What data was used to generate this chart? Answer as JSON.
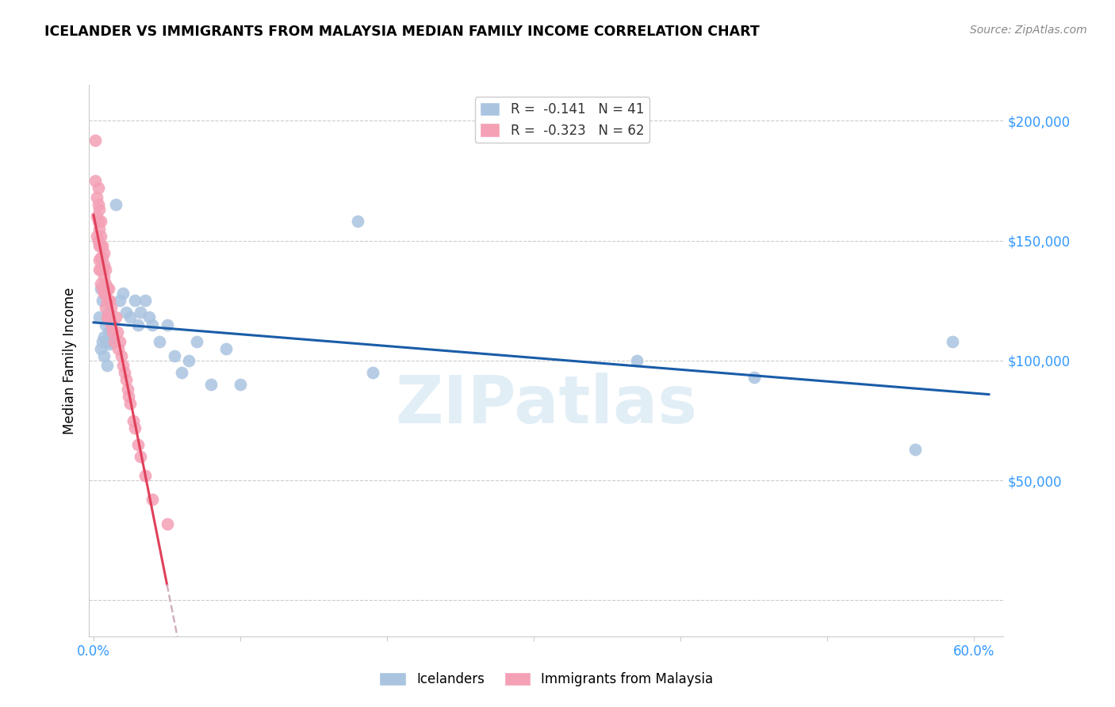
{
  "title": "ICELANDER VS IMMIGRANTS FROM MALAYSIA MEDIAN FAMILY INCOME CORRELATION CHART",
  "source": "Source: ZipAtlas.com",
  "ylabel": "Median Family Income",
  "xlim": [
    -0.003,
    0.62
  ],
  "ylim": [
    -15000,
    215000
  ],
  "ytick_vals": [
    0,
    50000,
    100000,
    150000,
    200000
  ],
  "ytick_labels": [
    "",
    "$50,000",
    "$100,000",
    "$150,000",
    "$200,000"
  ],
  "xtick_vals": [
    0.0,
    0.1,
    0.2,
    0.3,
    0.4,
    0.5,
    0.6
  ],
  "xtick_labels": [
    "0.0%",
    "",
    "",
    "",
    "",
    "",
    "60.0%"
  ],
  "blue_color": "#aac4e0",
  "pink_color": "#f4a0b5",
  "blue_line_color": "#1a5ca8",
  "pink_line_color": "#e0405a",
  "pink_dash_color": "#d0b0c0",
  "watermark": "ZIPatlas",
  "grid_color": "#cccccc",
  "tick_color": "#3399ff",
  "icelanders_x": [
    0.004,
    0.005,
    0.005,
    0.006,
    0.006,
    0.007,
    0.007,
    0.008,
    0.009,
    0.009,
    0.01,
    0.01,
    0.011,
    0.012,
    0.013,
    0.015,
    0.018,
    0.02,
    0.022,
    0.025,
    0.028,
    0.03,
    0.032,
    0.035,
    0.038,
    0.04,
    0.045,
    0.05,
    0.055,
    0.06,
    0.065,
    0.07,
    0.08,
    0.09,
    0.1,
    0.18,
    0.19,
    0.37,
    0.45,
    0.56,
    0.585
  ],
  "icelanders_y": [
    118000,
    130000,
    105000,
    125000,
    108000,
    110000,
    102000,
    115000,
    108000,
    98000,
    120000,
    112000,
    107000,
    116000,
    108000,
    165000,
    125000,
    128000,
    120000,
    118000,
    125000,
    115000,
    120000,
    125000,
    118000,
    115000,
    108000,
    115000,
    102000,
    95000,
    100000,
    108000,
    90000,
    105000,
    90000,
    158000,
    95000,
    100000,
    93000,
    63000,
    108000
  ],
  "malaysia_x": [
    0.001,
    0.001,
    0.002,
    0.002,
    0.002,
    0.003,
    0.003,
    0.003,
    0.003,
    0.004,
    0.004,
    0.004,
    0.004,
    0.004,
    0.005,
    0.005,
    0.005,
    0.005,
    0.005,
    0.005,
    0.006,
    0.006,
    0.006,
    0.006,
    0.007,
    0.007,
    0.007,
    0.007,
    0.008,
    0.008,
    0.008,
    0.008,
    0.009,
    0.009,
    0.009,
    0.01,
    0.01,
    0.01,
    0.011,
    0.011,
    0.012,
    0.012,
    0.013,
    0.014,
    0.015,
    0.016,
    0.017,
    0.018,
    0.019,
    0.02,
    0.021,
    0.022,
    0.023,
    0.024,
    0.025,
    0.027,
    0.028,
    0.03,
    0.032,
    0.035,
    0.04,
    0.05
  ],
  "malaysia_y": [
    192000,
    175000,
    168000,
    160000,
    152000,
    172000,
    165000,
    158000,
    150000,
    163000,
    155000,
    148000,
    142000,
    138000,
    158000,
    152000,
    148000,
    143000,
    138000,
    132000,
    148000,
    143000,
    138000,
    130000,
    145000,
    140000,
    135000,
    128000,
    138000,
    132000,
    128000,
    122000,
    130000,
    125000,
    118000,
    130000,
    125000,
    118000,
    125000,
    118000,
    122000,
    115000,
    112000,
    108000,
    118000,
    112000,
    105000,
    108000,
    102000,
    98000,
    95000,
    92000,
    88000,
    85000,
    82000,
    75000,
    72000,
    65000,
    60000,
    52000,
    42000,
    32000
  ]
}
